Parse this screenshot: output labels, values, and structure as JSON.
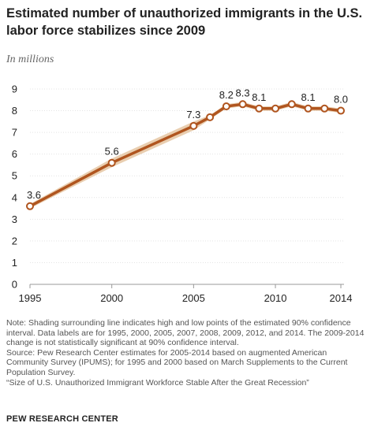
{
  "chart_data": {
    "type": "line",
    "title": "Estimated number of unauthorized immigrants in the U.S. labor force stabilizes since 2009",
    "subtitle": "In millions",
    "xlabel": "",
    "ylabel": "",
    "x": [
      1995,
      2000,
      2005,
      2006,
      2007,
      2008,
      2009,
      2010,
      2011,
      2012,
      2013,
      2014
    ],
    "xticks": [
      "1995",
      "2000",
      "2005",
      "2010",
      "2014"
    ],
    "xlim": [
      1995,
      2014
    ],
    "ylim": [
      0,
      9
    ],
    "yticks": [
      "0",
      "1",
      "2",
      "3",
      "4",
      "5",
      "6",
      "7",
      "8",
      "9"
    ],
    "series": [
      {
        "values": [
          3.6,
          5.6,
          7.3,
          7.7,
          8.2,
          8.3,
          8.1,
          8.1,
          8.3,
          8.1,
          8.1,
          8.0
        ],
        "low": [
          3.5,
          5.4,
          7.1,
          7.6,
          8.1,
          8.2,
          8.0,
          8.0,
          8.2,
          8.0,
          8.0,
          7.9
        ],
        "high": [
          3.7,
          5.8,
          7.5,
          7.8,
          8.3,
          8.4,
          8.2,
          8.2,
          8.4,
          8.2,
          8.2,
          8.1
        ],
        "color": "#b0551f",
        "band_color": "#e7c9a7"
      }
    ],
    "data_labels": [
      {
        "x": 1995,
        "text": "3.6"
      },
      {
        "x": 2000,
        "text": "5.6"
      },
      {
        "x": 2005,
        "text": "7.3"
      },
      {
        "x": 2007,
        "text": "8.2"
      },
      {
        "x": 2008,
        "text": "8.3"
      },
      {
        "x": 2009,
        "text": "8.1"
      },
      {
        "x": 2012,
        "text": "8.1"
      },
      {
        "x": 2014,
        "text": "8.0"
      }
    ],
    "grid": true,
    "colors": {
      "axis": "#999999",
      "grid": "#e4e4e4",
      "marker_fill": "#ffffff"
    }
  },
  "footer": {
    "note": "Note: Shading surrounding line indicates high and low points of the estimated 90% confidence interval. Data labels are for 1995, 2000, 2005, 2007, 2008, 2009, 2012, and 2014. The 2009-2014 change is not statistically significant at 90% confidence interval.",
    "source": "Source: Pew Research Center estimates for 2005-2014 based on augmented American Community Survey (IPUMS); for 1995 and 2000 based on March Supplements to the Current Population Survey.",
    "report": "“Size of U.S. Unauthorized Immigrant Workforce Stable After the Great Recession”",
    "brand": "PEW RESEARCH CENTER"
  }
}
